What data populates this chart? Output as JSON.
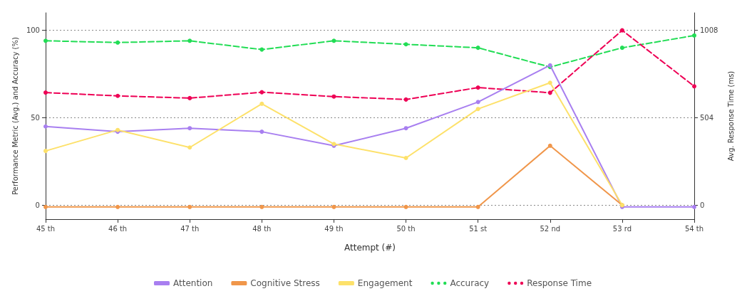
{
  "chart_data": {
    "type": "line",
    "xlabel": "Attempt (#)",
    "ylabel": "Performance Metric (Avg.) and Accuracy (%)",
    "y2label": "Avg. Response Time (ms)",
    "categories": [
      "45 th",
      "46 th",
      "47 th",
      "48 th",
      "49 th",
      "50 th",
      "51 st",
      "52 nd",
      "53 rd",
      "54 th"
    ],
    "series": [
      {
        "name": "Attention",
        "color": "#a87ff0",
        "line_style": "solid",
        "values": [
          45,
          42,
          44,
          42,
          34,
          44,
          59,
          80,
          -1,
          -1
        ]
      },
      {
        "name": "Cognitive Stress",
        "color": "#f0964a",
        "line_style": "solid",
        "values": [
          -1,
          -1,
          -1,
          -1,
          -1,
          -1,
          -1,
          34,
          0,
          null
        ]
      },
      {
        "name": "Engagement",
        "color": "#fde16a",
        "line_style": "solid",
        "values": [
          31,
          43,
          33,
          58,
          35,
          27,
          55,
          70,
          0,
          null
        ]
      },
      {
        "name": "Accuracy",
        "color": "#22dd55",
        "line_style": "dashed",
        "values": [
          94,
          93,
          94,
          89,
          94,
          92,
          90,
          79,
          90,
          97
        ]
      },
      {
        "name": "Response Time",
        "color": "#ee0055",
        "line_style": "dashed",
        "axis": "y2",
        "values": [
          649,
          630,
          617,
          651,
          626,
          609,
          678,
          648,
          1008,
          685
        ]
      }
    ],
    "ylim": [
      -8,
      110
    ],
    "yticks": [
      0,
      50,
      100
    ],
    "y2lim": [
      -81,
      1109
    ],
    "y2ticks": [
      0,
      504,
      1008
    ],
    "grid": "y",
    "legend": "bottom",
    "marker": "circle"
  }
}
